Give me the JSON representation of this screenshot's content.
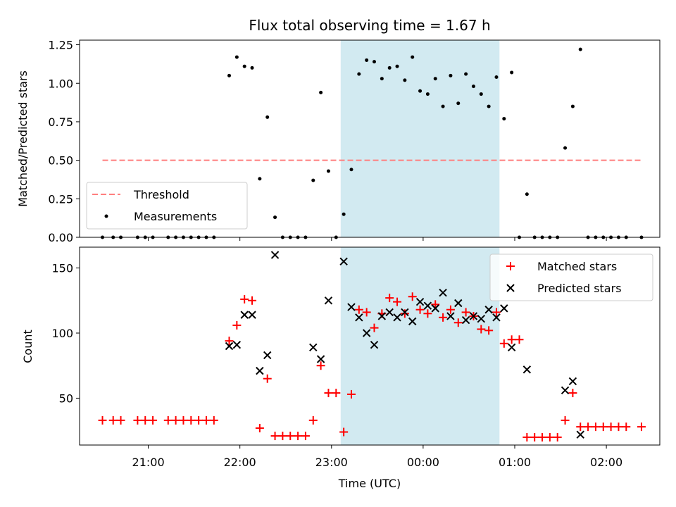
{
  "figure": {
    "title": "Flux total observing time = 1.67 h"
  },
  "colors": {
    "threshold": "#ff7f7f",
    "measurements": "#000000",
    "matched": "#ff0000",
    "predicted": "#000000",
    "highlight_fill": "#add8e6"
  },
  "chart_data": [
    {
      "type": "scatter",
      "panel": "top",
      "title": "Flux total observing time = 1.67 h",
      "xlabel": "",
      "ylabel": "Matched/Predicted stars",
      "xlim": [
        "20:15",
        "02:35"
      ],
      "ylim": [
        0,
        1.28
      ],
      "yticks": [
        0.0,
        0.25,
        0.5,
        0.75,
        1.0,
        1.25
      ],
      "ytick_labels": [
        "0.00",
        "0.25",
        "0.50",
        "0.75",
        "1.00",
        "1.25"
      ],
      "highlight_span": [
        "23:06",
        "00:50"
      ],
      "legend": {
        "position": "lower left",
        "entries": [
          "Threshold",
          "Measurements"
        ]
      },
      "threshold": {
        "name": "Threshold",
        "y": 0.5,
        "x_range": [
          "20:30",
          "02:23"
        ],
        "style": "dashed"
      },
      "series": [
        {
          "name": "Measurements",
          "marker": "dot",
          "points": [
            [
              "20:30",
              0.0
            ],
            [
              "20:37",
              0.0
            ],
            [
              "20:42",
              0.0
            ],
            [
              "20:53",
              0.0
            ],
            [
              "20:58",
              0.0
            ],
            [
              "21:03",
              0.0
            ],
            [
              "21:13",
              0.0
            ],
            [
              "21:18",
              0.0
            ],
            [
              "21:23",
              0.0
            ],
            [
              "21:28",
              0.0
            ],
            [
              "21:33",
              0.0
            ],
            [
              "21:38",
              0.0
            ],
            [
              "21:43",
              0.0
            ],
            [
              "21:53",
              1.05
            ],
            [
              "21:58",
              1.17
            ],
            [
              "22:03",
              1.11
            ],
            [
              "22:08",
              1.1
            ],
            [
              "22:13",
              0.38
            ],
            [
              "22:18",
              0.78
            ],
            [
              "22:23",
              0.13
            ],
            [
              "22:28",
              0.0
            ],
            [
              "22:33",
              0.0
            ],
            [
              "22:38",
              0.0
            ],
            [
              "22:43",
              0.0
            ],
            [
              "22:48",
              0.37
            ],
            [
              "22:53",
              0.94
            ],
            [
              "22:58",
              0.43
            ],
            [
              "23:03",
              0.0
            ],
            [
              "23:08",
              0.15
            ],
            [
              "23:13",
              0.44
            ],
            [
              "23:18",
              1.06
            ],
            [
              "23:23",
              1.15
            ],
            [
              "23:28",
              1.14
            ],
            [
              "23:33",
              1.03
            ],
            [
              "23:38",
              1.1
            ],
            [
              "23:43",
              1.11
            ],
            [
              "23:48",
              1.02
            ],
            [
              "23:53",
              1.17
            ],
            [
              "23:58",
              0.95
            ],
            [
              "00:03",
              0.93
            ],
            [
              "00:08",
              1.03
            ],
            [
              "00:13",
              0.85
            ],
            [
              "00:18",
              1.05
            ],
            [
              "00:23",
              0.87
            ],
            [
              "00:28",
              1.06
            ],
            [
              "00:33",
              0.98
            ],
            [
              "00:38",
              0.93
            ],
            [
              "00:43",
              0.85
            ],
            [
              "00:48",
              1.04
            ],
            [
              "00:53",
              0.77
            ],
            [
              "00:58",
              1.07
            ],
            [
              "01:03",
              0.0
            ],
            [
              "01:08",
              0.28
            ],
            [
              "01:13",
              0.0
            ],
            [
              "01:18",
              0.0
            ],
            [
              "01:23",
              0.0
            ],
            [
              "01:28",
              0.0
            ],
            [
              "01:33",
              0.58
            ],
            [
              "01:38",
              0.85
            ],
            [
              "01:43",
              1.22
            ],
            [
              "01:48",
              0.0
            ],
            [
              "01:53",
              0.0
            ],
            [
              "01:58",
              0.0
            ],
            [
              "02:03",
              0.0
            ],
            [
              "02:08",
              0.0
            ],
            [
              "02:13",
              0.0
            ],
            [
              "02:23",
              0.0
            ]
          ]
        }
      ]
    },
    {
      "type": "scatter",
      "panel": "bottom",
      "xlabel": "Time (UTC)",
      "ylabel": "Count",
      "xlim": [
        "20:15",
        "02:35"
      ],
      "ylim": [
        14,
        166
      ],
      "yticks": [
        50,
        100,
        150
      ],
      "ytick_labels": [
        "50",
        "100",
        "150"
      ],
      "xticks": [
        "21:00",
        "22:00",
        "23:00",
        "00:00",
        "01:00",
        "02:00"
      ],
      "highlight_span": [
        "23:06",
        "00:50"
      ],
      "legend": {
        "position": "upper right",
        "entries": [
          "Matched stars",
          "Predicted stars"
        ]
      },
      "series": [
        {
          "name": "Matched stars",
          "marker": "plus",
          "points": [
            [
              "20:30",
              33
            ],
            [
              "20:37",
              33
            ],
            [
              "20:42",
              33
            ],
            [
              "20:53",
              33
            ],
            [
              "20:58",
              33
            ],
            [
              "21:03",
              33
            ],
            [
              "21:13",
              33
            ],
            [
              "21:18",
              33
            ],
            [
              "21:23",
              33
            ],
            [
              "21:28",
              33
            ],
            [
              "21:33",
              33
            ],
            [
              "21:38",
              33
            ],
            [
              "21:43",
              33
            ],
            [
              "21:53",
              94
            ],
            [
              "21:58",
              106
            ],
            [
              "22:03",
              126
            ],
            [
              "22:08",
              125
            ],
            [
              "22:13",
              27
            ],
            [
              "22:18",
              65
            ],
            [
              "22:23",
              21
            ],
            [
              "22:28",
              21
            ],
            [
              "22:33",
              21
            ],
            [
              "22:38",
              21
            ],
            [
              "22:43",
              21
            ],
            [
              "22:48",
              33
            ],
            [
              "22:53",
              75
            ],
            [
              "22:58",
              54
            ],
            [
              "23:03",
              54
            ],
            [
              "23:08",
              24
            ],
            [
              "23:13",
              53
            ],
            [
              "23:18",
              118
            ],
            [
              "23:23",
              116
            ],
            [
              "23:28",
              104
            ],
            [
              "23:33",
              115
            ],
            [
              "23:38",
              127
            ],
            [
              "23:43",
              124
            ],
            [
              "23:48",
              115
            ],
            [
              "23:53",
              128
            ],
            [
              "23:58",
              118
            ],
            [
              "00:03",
              115
            ],
            [
              "00:08",
              122
            ],
            [
              "00:13",
              112
            ],
            [
              "00:18",
              118
            ],
            [
              "00:23",
              108
            ],
            [
              "00:28",
              116
            ],
            [
              "00:33",
              113
            ],
            [
              "00:38",
              103
            ],
            [
              "00:43",
              102
            ],
            [
              "00:48",
              116
            ],
            [
              "00:53",
              92
            ],
            [
              "00:58",
              95
            ],
            [
              "01:03",
              95
            ],
            [
              "01:08",
              20
            ],
            [
              "01:13",
              20
            ],
            [
              "01:18",
              20
            ],
            [
              "01:23",
              20
            ],
            [
              "01:28",
              20
            ],
            [
              "01:33",
              33
            ],
            [
              "01:38",
              54
            ],
            [
              "01:43",
              28
            ],
            [
              "01:48",
              28
            ],
            [
              "01:53",
              28
            ],
            [
              "01:58",
              28
            ],
            [
              "02:03",
              28
            ],
            [
              "02:08",
              28
            ],
            [
              "02:13",
              28
            ],
            [
              "02:23",
              28
            ]
          ]
        },
        {
          "name": "Predicted stars",
          "marker": "x",
          "points": [
            [
              "21:53",
              90
            ],
            [
              "21:58",
              91
            ],
            [
              "22:03",
              114
            ],
            [
              "22:08",
              114
            ],
            [
              "22:13",
              71
            ],
            [
              "22:18",
              83
            ],
            [
              "22:23",
              160
            ],
            [
              "22:48",
              89
            ],
            [
              "22:53",
              80
            ],
            [
              "22:58",
              125
            ],
            [
              "23:08",
              155
            ],
            [
              "23:13",
              120
            ],
            [
              "23:18",
              112
            ],
            [
              "23:23",
              100
            ],
            [
              "23:28",
              91
            ],
            [
              "23:33",
              113
            ],
            [
              "23:38",
              116
            ],
            [
              "23:43",
              112
            ],
            [
              "23:48",
              116
            ],
            [
              "23:53",
              109
            ],
            [
              "23:58",
              124
            ],
            [
              "00:03",
              121
            ],
            [
              "00:08",
              119
            ],
            [
              "00:13",
              131
            ],
            [
              "00:18",
              113
            ],
            [
              "00:23",
              123
            ],
            [
              "00:28",
              110
            ],
            [
              "00:33",
              113
            ],
            [
              "00:38",
              111
            ],
            [
              "00:43",
              118
            ],
            [
              "00:48",
              112
            ],
            [
              "00:53",
              119
            ],
            [
              "00:58",
              89
            ],
            [
              "01:08",
              72
            ],
            [
              "01:33",
              56
            ],
            [
              "01:38",
              63
            ],
            [
              "01:43",
              22
            ]
          ]
        }
      ]
    }
  ]
}
